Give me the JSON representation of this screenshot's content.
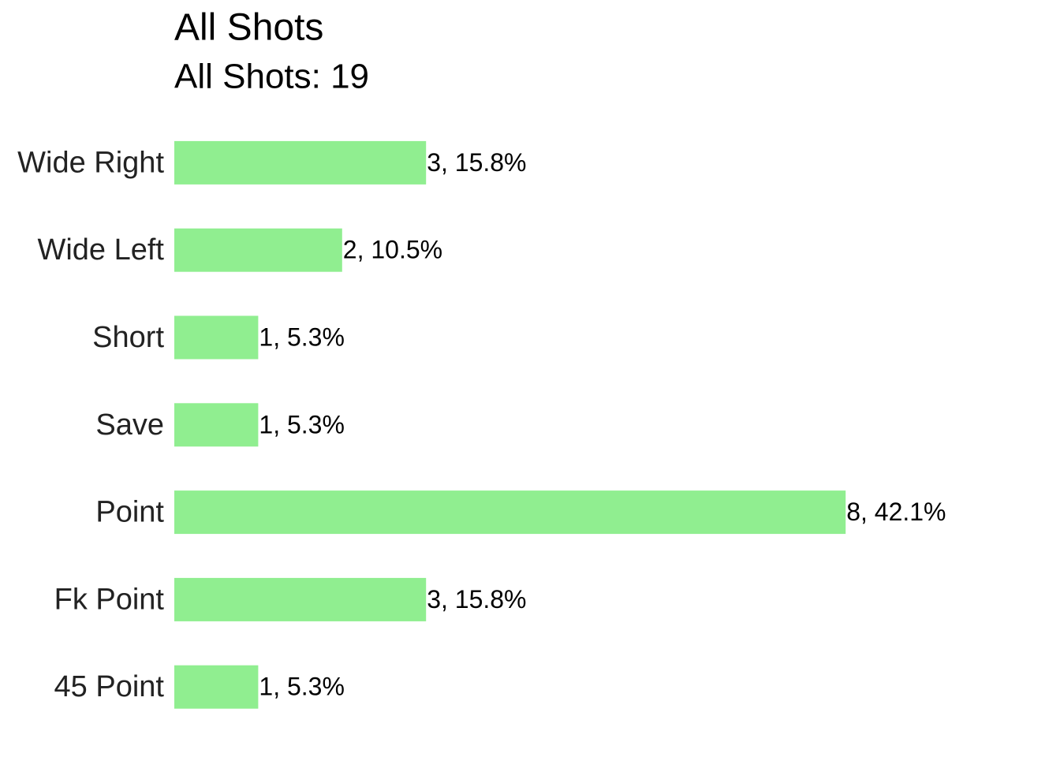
{
  "chart_data": {
    "type": "bar",
    "orientation": "horizontal",
    "title": "All Shots",
    "subtitle": "All Shots: 19",
    "categories": [
      "Wide Right",
      "Wide Left",
      "Short",
      "Save",
      "Point",
      "Fk Point",
      "45 Point"
    ],
    "values": [
      3,
      2,
      1,
      1,
      8,
      3,
      1
    ],
    "value_labels": [
      "3, 15.8%",
      "2, 10.5%",
      "1, 5.3%",
      "1, 5.3%",
      "8, 42.1%",
      "3, 15.8%",
      "1, 5.3%"
    ],
    "color": "#90ee90",
    "xlim": [
      0,
      10
    ],
    "grid": false
  }
}
